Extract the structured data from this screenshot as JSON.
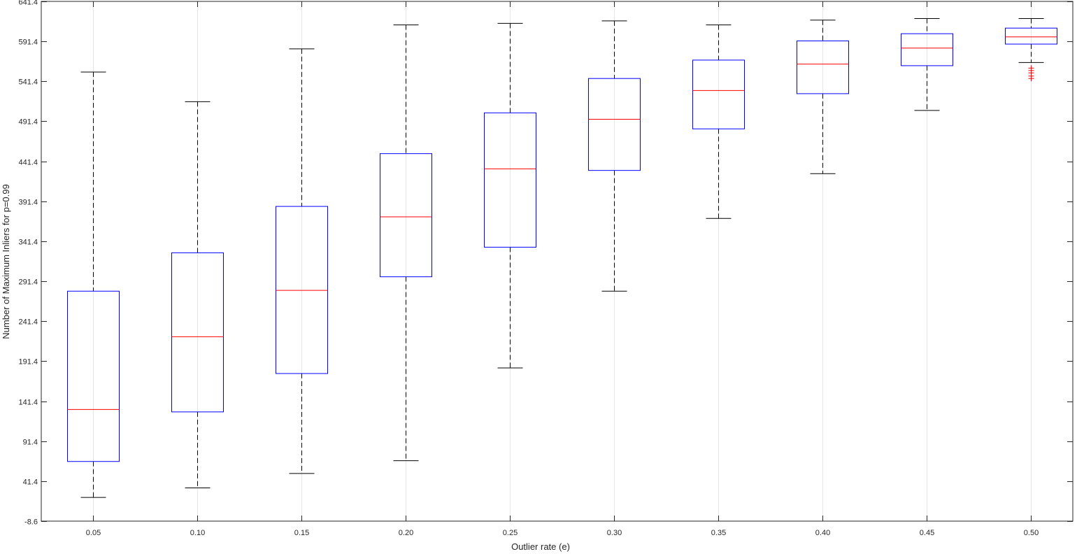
{
  "chart_data": {
    "type": "boxplot",
    "title": "",
    "xlabel": "Outlier rate (e)",
    "ylabel": "Number of Maximum Inliers for p=0.99",
    "ylim": [
      -8.6,
      641.4
    ],
    "yticks": [
      "-8.6",
      "41.4",
      "91.4",
      "141.4",
      "191.4",
      "241.4",
      "291.4",
      "341.4",
      "391.4",
      "441.4",
      "491.4",
      "541.4",
      "591.4",
      "641.4"
    ],
    "categories": [
      "0.05",
      "0.10",
      "0.15",
      "0.20",
      "0.25",
      "0.30",
      "0.35",
      "0.40",
      "0.45",
      "0.50"
    ],
    "boxes": [
      {
        "lower_whisker": 21,
        "q1": 66,
        "median": 131,
        "q3": 279,
        "upper_whisker": 553
      },
      {
        "lower_whisker": 33,
        "q1": 128,
        "median": 222,
        "q3": 327,
        "upper_whisker": 516
      },
      {
        "lower_whisker": 51,
        "q1": 176,
        "median": 280,
        "q3": 385,
        "upper_whisker": 582
      },
      {
        "lower_whisker": 67,
        "q1": 297,
        "median": 372,
        "q3": 451,
        "upper_whisker": 612
      },
      {
        "lower_whisker": 183,
        "q1": 334,
        "median": 432,
        "q3": 502,
        "upper_whisker": 614
      },
      {
        "lower_whisker": 279,
        "q1": 430,
        "median": 494,
        "q3": 545,
        "upper_whisker": 617
      },
      {
        "lower_whisker": 370,
        "q1": 482,
        "median": 530,
        "q3": 568,
        "upper_whisker": 612
      },
      {
        "lower_whisker": 426,
        "q1": 526,
        "median": 563,
        "q3": 592,
        "upper_whisker": 618
      },
      {
        "lower_whisker": 505,
        "q1": 561,
        "median": 583,
        "q3": 601,
        "upper_whisker": 620
      },
      {
        "lower_whisker": 565,
        "q1": 588,
        "median": 597,
        "q3": 608,
        "upper_whisker": 620,
        "outliers": [
          558,
          555,
          552,
          548,
          545
        ]
      }
    ],
    "grid": "vertical",
    "colors": {
      "box": "#0000ff",
      "median": "#ff0000",
      "whisker": "#000000",
      "outlier": "#ff0000",
      "grid": "#e6e6e6",
      "axes": "#262626"
    }
  }
}
